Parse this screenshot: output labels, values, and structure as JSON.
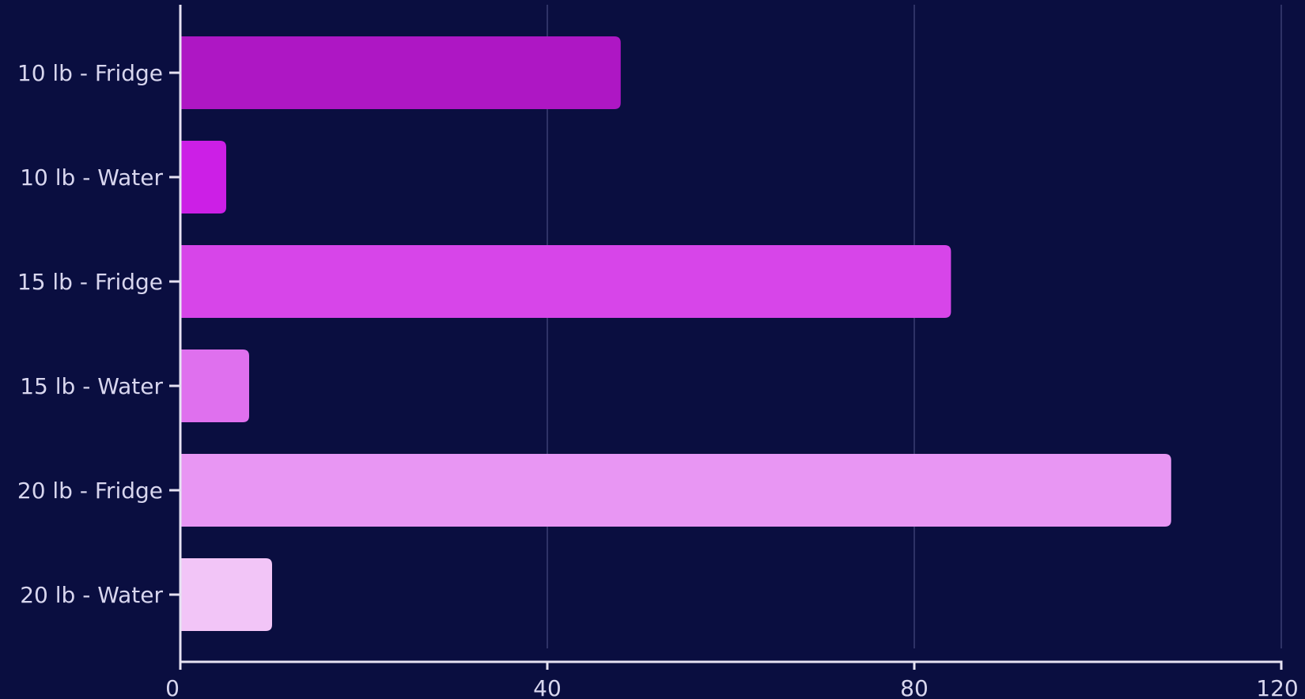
{
  "chart_data": {
    "type": "bar",
    "orientation": "horizontal",
    "categories": [
      "10 lb - Fridge",
      "10 lb - Water",
      "15 lb - Fridge",
      "15 lb - Water",
      "20 lb - Fridge",
      "20 lb - Water"
    ],
    "values": [
      48,
      5,
      84,
      7.5,
      108,
      10
    ],
    "colors": [
      "#ae17c4",
      "#cc1fe6",
      "#d745e9",
      "#df70ee",
      "#e896f3",
      "#f2c5f7"
    ],
    "xlim": [
      0,
      120
    ],
    "x_ticks": [
      0,
      40,
      80,
      120
    ],
    "x_tick_labels": [
      "0",
      "40",
      "80",
      "120"
    ],
    "title": "",
    "xlabel": "",
    "ylabel": "",
    "grid": "vertical",
    "legend": "none",
    "background_color": "#0a0e40",
    "axis_color": "#e6e2f2",
    "grid_color": "#3a3f73",
    "label_color": "#d8d6ee"
  }
}
